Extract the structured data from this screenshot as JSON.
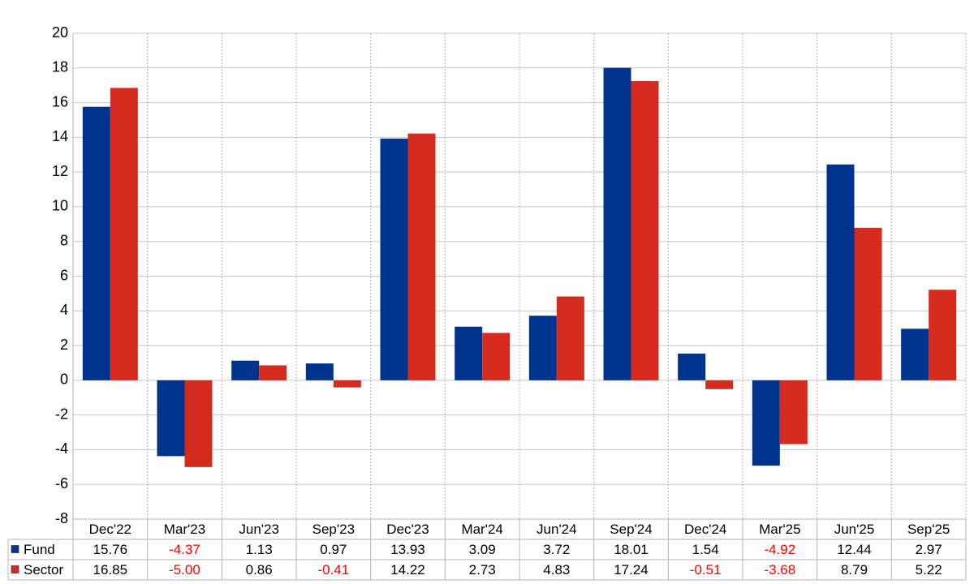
{
  "chart_data": {
    "type": "bar",
    "categories": [
      "Dec'22",
      "Mar'23",
      "Jun'23",
      "Sep'23",
      "Dec'23",
      "Mar'24",
      "Jun'24",
      "Sep'24",
      "Dec'24",
      "Mar'25",
      "Jun'25",
      "Sep'25"
    ],
    "series": [
      {
        "name": "Fund",
        "color": "#00338d",
        "values": [
          15.76,
          -4.37,
          1.13,
          0.97,
          13.93,
          3.09,
          3.72,
          18.01,
          1.54,
          -4.92,
          12.44,
          2.97
        ],
        "value_labels": [
          "15.76",
          "-4.37",
          "1.13",
          "0.97",
          "13.93",
          "3.09",
          "3.72",
          "18.01",
          "1.54",
          "-4.92",
          "12.44",
          "2.97"
        ]
      },
      {
        "name": "Sector",
        "color": "#d52b1e",
        "values": [
          16.85,
          -5,
          0.86,
          -0.41,
          14.22,
          2.73,
          4.83,
          17.24,
          -0.51,
          -3.68,
          8.79,
          5.22
        ],
        "value_labels": [
          "16.85",
          "-5.00",
          "0.86",
          "-0.41",
          "14.22",
          "2.73",
          "4.83",
          "17.24",
          "-0.51",
          "-3.68",
          "8.79",
          "5.22"
        ]
      }
    ],
    "ylim": [
      -8,
      20
    ],
    "yticks": [
      -8,
      -6,
      -4,
      -2,
      0,
      2,
      4,
      6,
      8,
      10,
      12,
      14,
      16,
      18,
      20
    ],
    "grid": true,
    "negative_label_color": "#ff0000"
  }
}
